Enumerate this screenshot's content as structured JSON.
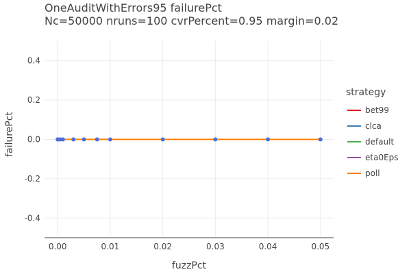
{
  "chart_data": {
    "type": "line",
    "title": "OneAuditWithErrors95 failurePct",
    "subtitle": "Nc=50000 nruns=100 cvrPercent=0.95 margin=0.02",
    "xlabel": "fuzzPct",
    "ylabel": "failurePct",
    "xlim": [
      -0.0025,
      0.0525
    ],
    "ylim": [
      -0.5,
      0.5
    ],
    "x_ticks": [
      0,
      0.01,
      0.02,
      0.03,
      0.04,
      0.05
    ],
    "x_tick_labels": [
      "0.00",
      "0.01",
      "0.02",
      "0.03",
      "0.04",
      "0.05"
    ],
    "y_ticks": [
      -0.4,
      -0.2,
      0,
      0.2,
      0.4
    ],
    "y_tick_labels": [
      "-0.4",
      "-0.2",
      "0.0",
      "0.2",
      "0.4"
    ],
    "grid": true,
    "legend": {
      "title": "strategy",
      "placement": "right"
    },
    "x": [
      0,
      0.0001,
      0.0005,
      0.001,
      0.003,
      0.005,
      0.0075,
      0.01,
      0.02,
      0.03,
      0.04,
      0.05
    ],
    "series": [
      {
        "name": "bet99",
        "color": "#e41a1c",
        "values": [
          0,
          0,
          0,
          0,
          0,
          0,
          0,
          0,
          0,
          0,
          0,
          0
        ]
      },
      {
        "name": "clca",
        "color": "#377eb8",
        "values": [
          0,
          0,
          0,
          0,
          0,
          0,
          0,
          0,
          0,
          0,
          0,
          0
        ]
      },
      {
        "name": "default",
        "color": "#4daf4a",
        "values": [
          0,
          0,
          0,
          0,
          0,
          0,
          0,
          0,
          0,
          0,
          0,
          0
        ]
      },
      {
        "name": "eta0Eps",
        "color": "#984ea3",
        "values": [
          0,
          0,
          0,
          0,
          0,
          0,
          0,
          0,
          0,
          0,
          0,
          0
        ]
      },
      {
        "name": "poll",
        "color": "#ff7f00",
        "values": [
          0,
          0,
          0,
          0,
          0,
          0,
          0,
          0,
          0,
          0,
          0,
          0
        ]
      }
    ],
    "marker_color": "#4f6fd6"
  }
}
